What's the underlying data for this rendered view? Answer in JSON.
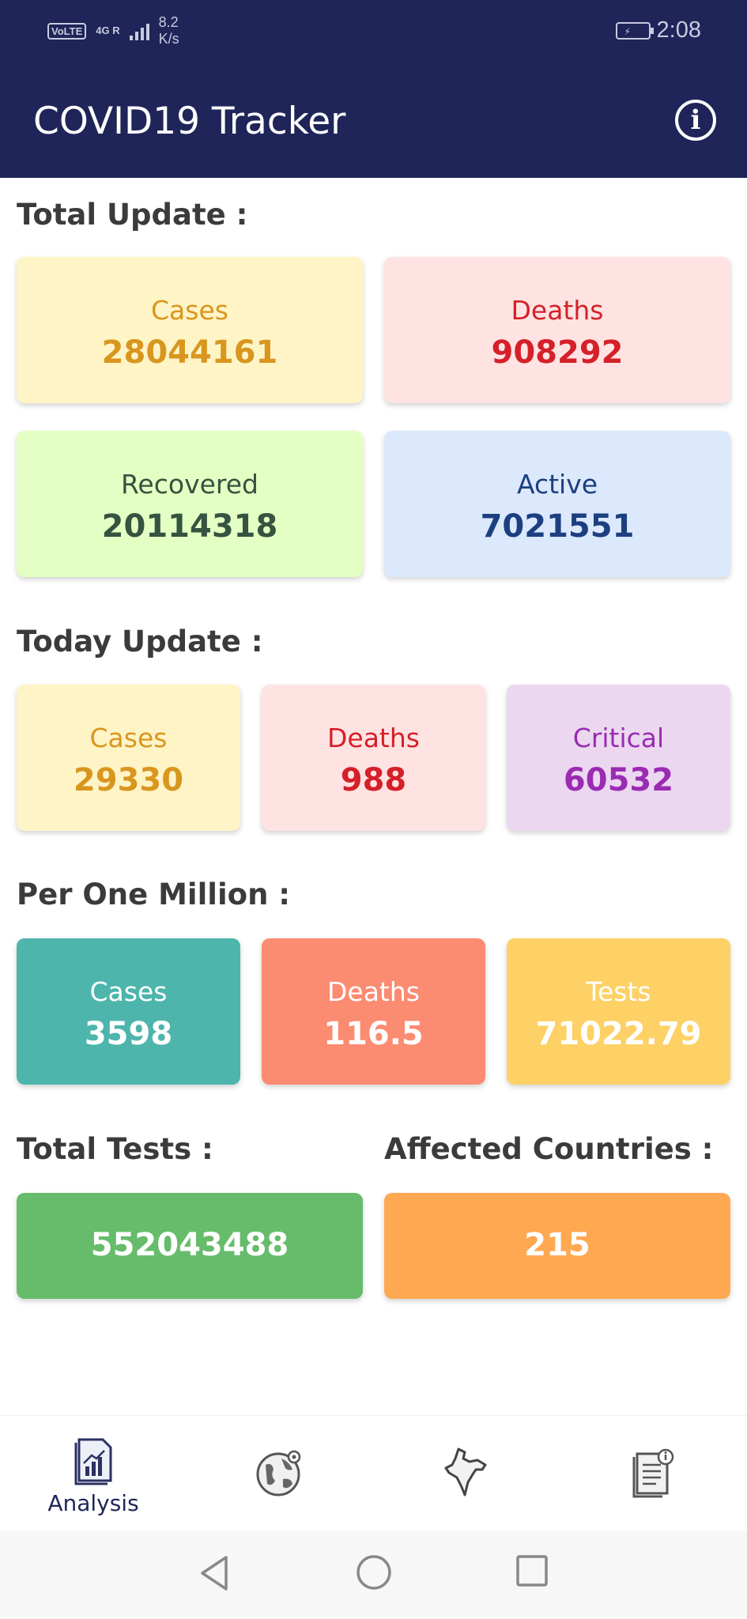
{
  "status_bar": {
    "volte": "VoLTE",
    "network": "4G R",
    "speed": "8.2 K/s",
    "time": "2:08"
  },
  "app": {
    "title": "COVID19 Tracker",
    "info_icon": "info-icon"
  },
  "total_update": {
    "heading": "Total Update :",
    "cards": [
      {
        "label": "Cases",
        "value": "28044161"
      },
      {
        "label": "Deaths",
        "value": "908292"
      },
      {
        "label": "Recovered",
        "value": "20114318"
      },
      {
        "label": "Active",
        "value": "7021551"
      }
    ]
  },
  "today_update": {
    "heading": "Today Update :",
    "cards": [
      {
        "label": "Cases",
        "value": "29330"
      },
      {
        "label": "Deaths",
        "value": "988"
      },
      {
        "label": "Critical",
        "value": "60532"
      }
    ]
  },
  "per_million": {
    "heading": "Per One Million :",
    "cards": [
      {
        "label": "Cases",
        "value": "3598"
      },
      {
        "label": "Deaths",
        "value": "116.5"
      },
      {
        "label": "Tests",
        "value": "71022.79"
      }
    ]
  },
  "total_tests": {
    "heading": "Total Tests :",
    "value": "552043488"
  },
  "affected_countries": {
    "heading": "Affected Countries :",
    "value": "215"
  },
  "bottom_nav": {
    "items": [
      {
        "icon": "analysis-report-icon",
        "label": "Analysis"
      },
      {
        "icon": "globe-icon",
        "label": ""
      },
      {
        "icon": "india-map-icon",
        "label": ""
      },
      {
        "icon": "news-document-icon",
        "label": ""
      }
    ]
  },
  "colors": {
    "appbar": "#1f2558",
    "cases": "#d9961f",
    "deaths": "#d52029",
    "recovered": "#355340",
    "active": "#1c3f80",
    "critical": "#9a2bb3",
    "tests_card": "#67bc6b",
    "countries_card": "#ffa852"
  }
}
